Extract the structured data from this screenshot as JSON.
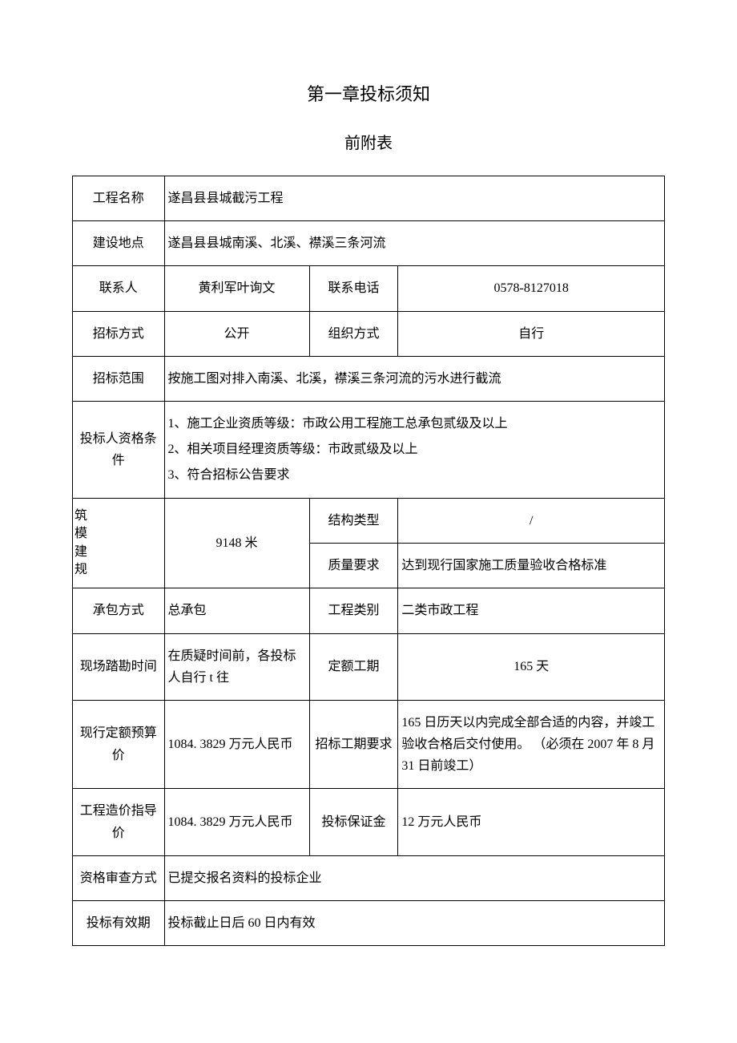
{
  "title": "第一章投标须知",
  "subtitle": "前附表",
  "rows": {
    "project_name_label": "工程名称",
    "project_name": "遂昌县县城截污工程",
    "location_label": "建设地点",
    "location": "遂昌县县城南溪、北溪、襟溪三条河流",
    "contact_label": "联系人",
    "contact": "黄利军叶询文",
    "phone_label": "联系电话",
    "phone": "0578-8127018",
    "bid_method_label": "招标方式",
    "bid_method": "公开",
    "org_method_label": "组织方式",
    "org_method": "自行",
    "scope_label": "招标范围",
    "scope": "按施工图对排入南溪、北溪，襟溪三条河流的污水进行截流",
    "qualification_label": "投标人资格条件",
    "qualification_1": "1、施工企业资质等级：市政公用工程施工总承包贰级及以上",
    "qualification_2": "2、相关项目经理资质等级：市政贰级及以上",
    "qualification_3": "3、符合招标公告要求",
    "scale_label": "筑\n模\n建\n规",
    "scale": "9148 米",
    "structure_type_label": "结构类型",
    "structure_type": "/",
    "quality_label": "质量要求",
    "quality": "达到现行国家施工质量验收合格标准",
    "contract_label": "承包方式",
    "contract": "总承包",
    "project_class_label": "工程类别",
    "project_class": "二类市政工程",
    "survey_label": "现场踏勘时间",
    "survey": "在质疑时间前，各投标人自行 t 往",
    "duration_label": "定额工期",
    "duration": "165 天",
    "budget_label": "现行定额预算价",
    "budget": "1084. 3829 万元人民币",
    "bid_duration_label": "招标工期要求",
    "bid_duration": "165 日历天以内完成全部合适的内容，并竣工验收合格后交付使用。 （必须在 2007 年 8 月 31 日前竣工）",
    "guide_price_label": "工程造价指导价",
    "guide_price": "1084. 3829 万元人民币",
    "deposit_label": "投标保证金",
    "deposit": "12 万元人民币",
    "review_label": "资格审查方式",
    "review": "已提交报名资料的投标企业",
    "validity_label": "投标有效期",
    "validity": "投标截止日后 60 日内有效"
  },
  "style": {
    "background_color": "#ffffff",
    "text_color": "#000000",
    "border_color": "#000000",
    "title_fontsize": 22,
    "subtitle_fontsize": 20,
    "cell_fontsize": 16,
    "font_family": "SimSun"
  }
}
